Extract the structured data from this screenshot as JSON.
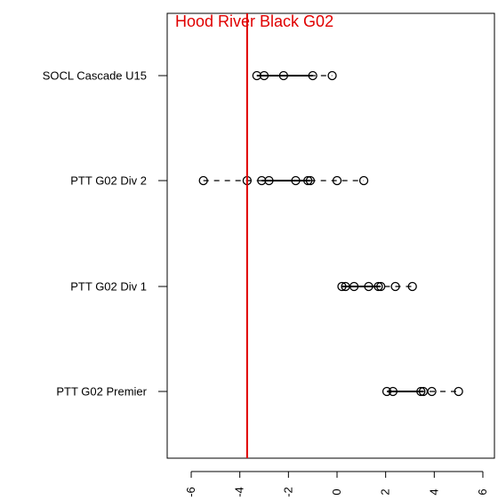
{
  "chart_data": {
    "type": "scatter",
    "title": "",
    "xlabel": "",
    "ylabel": "",
    "xlim": [
      -7,
      6
    ],
    "x_ticks": [
      -6,
      -4,
      -2,
      0,
      2,
      4,
      6
    ],
    "grid": false,
    "reference_line": {
      "x": -3.7,
      "label": "Hood River Black G02",
      "color": "#e00000"
    },
    "categories": [
      "SOCL Cascade U15",
      "PTT G02 Div 2",
      "PTT G02 Div 1",
      "PTT G02 Premier"
    ],
    "groups": [
      {
        "name": "SOCL Cascade U15",
        "points": [
          -3.3,
          -3.0,
          -2.2,
          -1.0,
          -0.2
        ],
        "solid": [
          -3.3,
          -1.0
        ],
        "dashed": [
          -3.3,
          -0.2
        ]
      },
      {
        "name": "PTT G02 Div 2",
        "points": [
          -5.5,
          -3.7,
          -3.1,
          -2.8,
          -1.7,
          -1.2,
          -1.1,
          0.0,
          1.1
        ],
        "solid": [
          -3.1,
          -1.1
        ],
        "dashed": [
          -5.5,
          1.1
        ]
      },
      {
        "name": "PTT G02 Div 1",
        "points": [
          0.2,
          0.35,
          0.7,
          1.3,
          1.7,
          1.8,
          2.4,
          3.1
        ],
        "solid": [
          0.2,
          1.8
        ],
        "dashed": [
          0.2,
          3.1
        ]
      },
      {
        "name": "PTT G02 Premier",
        "points": [
          2.05,
          2.3,
          3.45,
          3.55,
          3.9,
          5.0
        ],
        "solid": [
          2.05,
          3.55
        ],
        "dashed": [
          2.05,
          5.0
        ]
      }
    ]
  }
}
